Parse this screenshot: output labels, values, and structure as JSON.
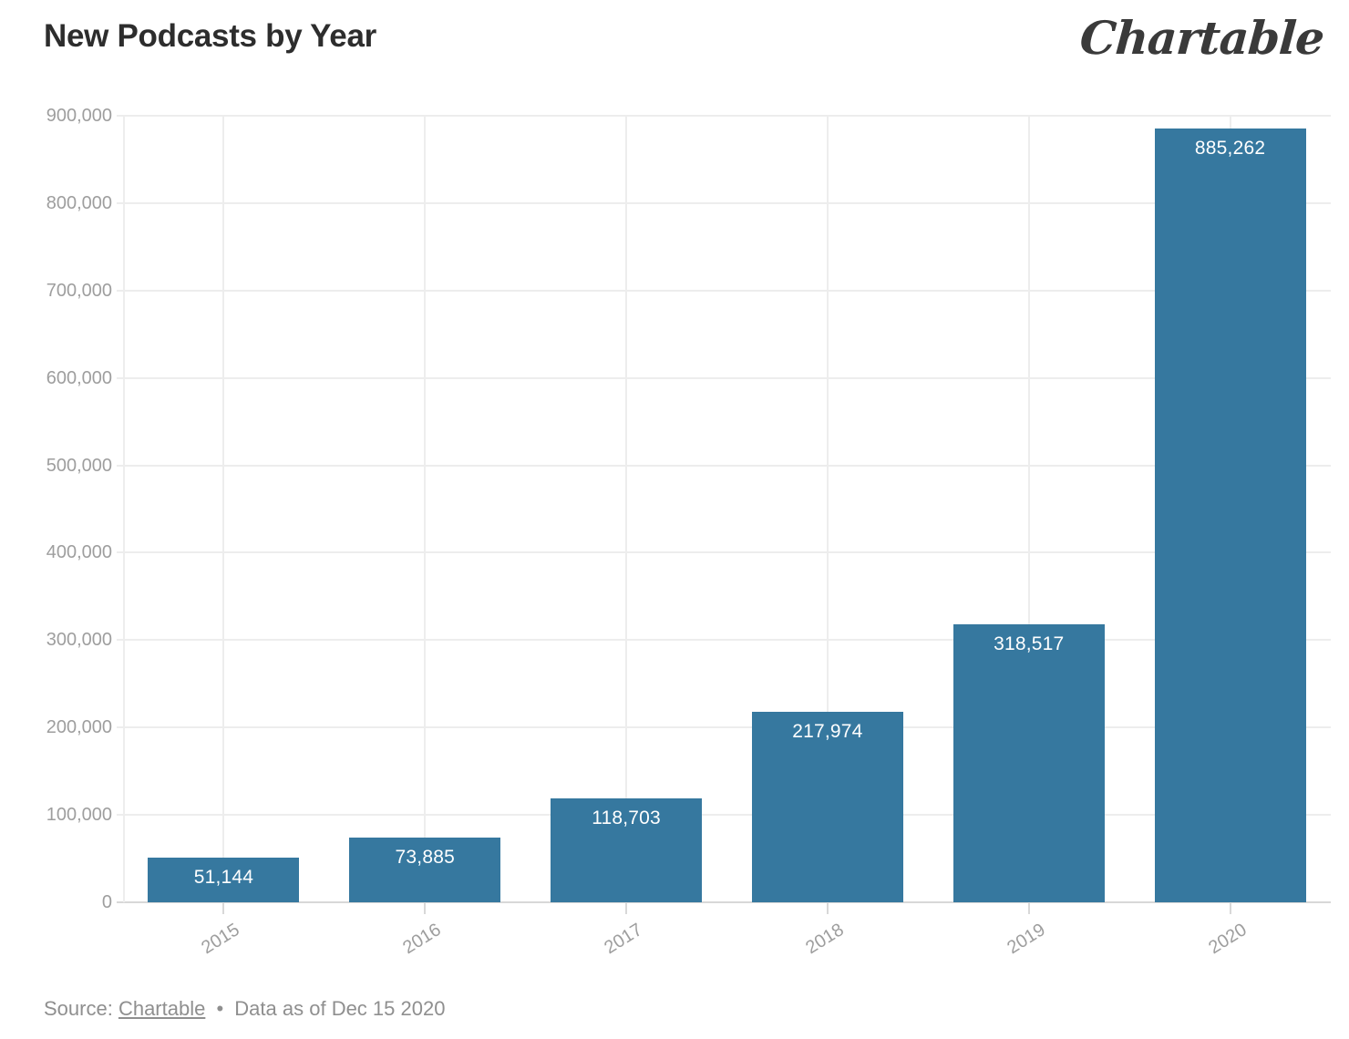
{
  "header": {
    "title": "New Podcasts by Year",
    "logo_text": "Chartable"
  },
  "chart_data": {
    "type": "bar",
    "title": "New Podcasts by Year",
    "categories": [
      "2015",
      "2016",
      "2017",
      "2018",
      "2019",
      "2020"
    ],
    "values": [
      51144,
      73885,
      118703,
      217974,
      318517,
      885262
    ],
    "value_labels": [
      "51,144",
      "73,885",
      "118,703",
      "217,974",
      "318,517",
      "885,262"
    ],
    "xlabel": "",
    "ylabel": "",
    "ylim": [
      0,
      900000
    ],
    "ytick_step": 100000,
    "ytick_labels": [
      "0",
      "100,000",
      "200,000",
      "300,000",
      "400,000",
      "500,000",
      "600,000",
      "700,000",
      "800,000",
      "900,000"
    ],
    "grid": true,
    "legend_position": "none",
    "bar_color": "#36789F",
    "value_label_color": "#FFFFFF",
    "axis_label_color": "#9E9E9E",
    "gridline_color": "#EDEDED",
    "x_label_rotation_deg": -32
  },
  "footer": {
    "source_prefix": "Source:",
    "source_link_text": "Chartable",
    "separator": "•",
    "note": "Data as of Dec 15 2020"
  }
}
